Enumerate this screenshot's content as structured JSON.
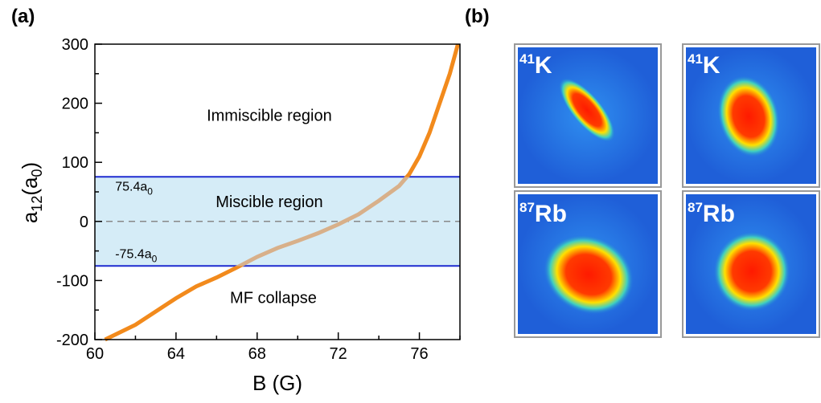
{
  "chart_data": {
    "type": "line",
    "panel_label": "(a)",
    "xlabel": "B (G)",
    "ylabel": [
      "a",
      "12",
      "(a",
      "0",
      ")"
    ],
    "xlim": [
      60,
      78
    ],
    "xticks": [
      60,
      64,
      68,
      72,
      76
    ],
    "xminorticks": [
      62,
      66,
      70,
      74,
      78
    ],
    "ylim": [
      -200,
      300
    ],
    "yticks": [
      -200,
      -100,
      0,
      100,
      200,
      300
    ],
    "yminorticks": [
      -150,
      -50,
      50,
      150,
      250
    ],
    "x": [
      60.5,
      62,
      64,
      65,
      66,
      67,
      68,
      69,
      70,
      71,
      72,
      73,
      74,
      75,
      75.5,
      76,
      76.5,
      77,
      77.5,
      77.9
    ],
    "series": [
      {
        "color": "#f28a1c",
        "inner_color": "#d8b08a",
        "values": [
          -200,
          -175,
          -130,
          -110,
          -95,
          -78,
          -60,
          -45,
          -33,
          -20,
          -5,
          12,
          35,
          60,
          80,
          110,
          150,
          200,
          250,
          300
        ]
      }
    ],
    "hlines": [
      75.4,
      -75.4
    ],
    "hline_color": "#1f2bd0",
    "band_color": "#d5ecf7",
    "dashed_lines": [
      0
    ],
    "annotations": [
      {
        "x": 61,
        "y": 52,
        "parts": [
          "75.4a",
          "0"
        ]
      },
      {
        "x": 61,
        "y": -62,
        "parts": [
          "-75.4a",
          "0"
        ]
      }
    ],
    "region_labels": [
      {
        "x": 68.6,
        "y": 170,
        "text": "Immiscible region"
      },
      {
        "x": 68.6,
        "y": 24,
        "text": "Miscible region"
      },
      {
        "x": 68.8,
        "y": -138,
        "text": "MF collapse"
      }
    ]
  },
  "panel_b": {
    "panel_label": "(b)",
    "images": [
      {
        "mass": "41",
        "element": "K"
      },
      {
        "mass": "41",
        "element": "K"
      },
      {
        "mass": "87",
        "element": "Rb"
      },
      {
        "mass": "87",
        "element": "Rb"
      }
    ]
  }
}
